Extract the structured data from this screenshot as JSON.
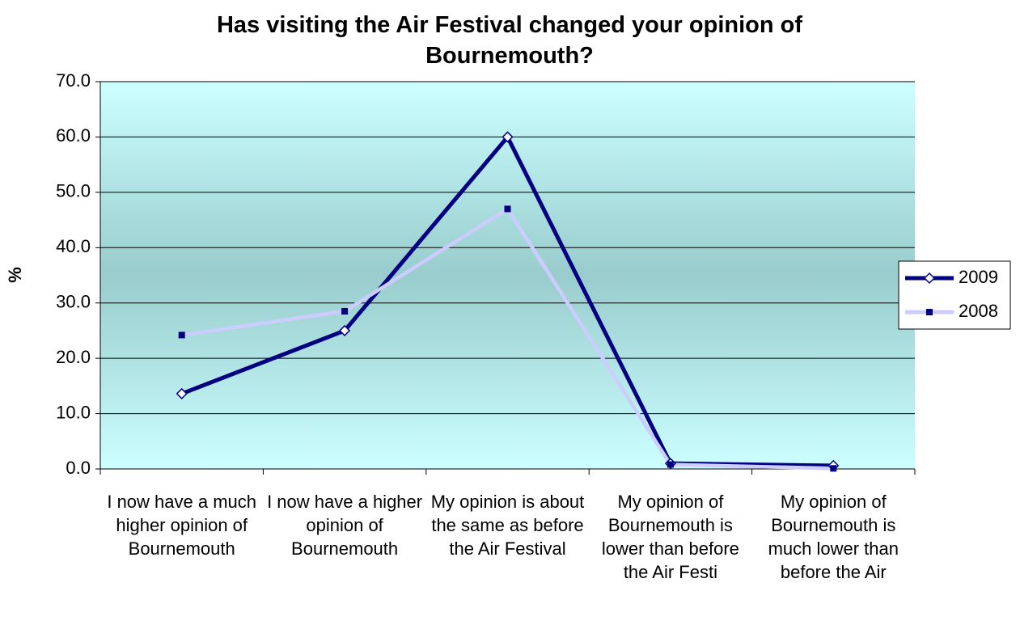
{
  "chart_data": {
    "type": "line",
    "title": "Has visiting the Air Festival changed your opinion of Bournemouth?",
    "y_label": "%",
    "categories": [
      "I now have a much higher opinion of Bournemouth",
      "I now have a higher opinion of Bournemouth",
      "My opinion is about the same as before the Air Festival",
      "My opinion of Bournemouth is lower than before the Air Festi",
      "My opinion of Bournemouth is much lower than before the Air"
    ],
    "series": [
      {
        "name": "2009",
        "color": "#000080",
        "marker": "diamond",
        "values": [
          13.6,
          25.0,
          60.0,
          1.0,
          0.6
        ]
      },
      {
        "name": "2008",
        "color": "#ccccff",
        "marker": "square",
        "values": [
          24.2,
          28.5,
          47.0,
          0.8,
          0.1
        ]
      }
    ],
    "ylim": [
      0,
      70
    ],
    "yticks": [
      {
        "value": 0,
        "label": "0.0"
      },
      {
        "value": 10,
        "label": "10.0"
      },
      {
        "value": 20,
        "label": "20.0"
      },
      {
        "value": 30,
        "label": "30.0"
      },
      {
        "value": 40,
        "label": "40.0"
      },
      {
        "value": 50,
        "label": "50.0"
      },
      {
        "value": 60,
        "label": "60.0"
      },
      {
        "value": 70,
        "label": "70.0"
      }
    ],
    "grid": true,
    "legend": "right"
  }
}
